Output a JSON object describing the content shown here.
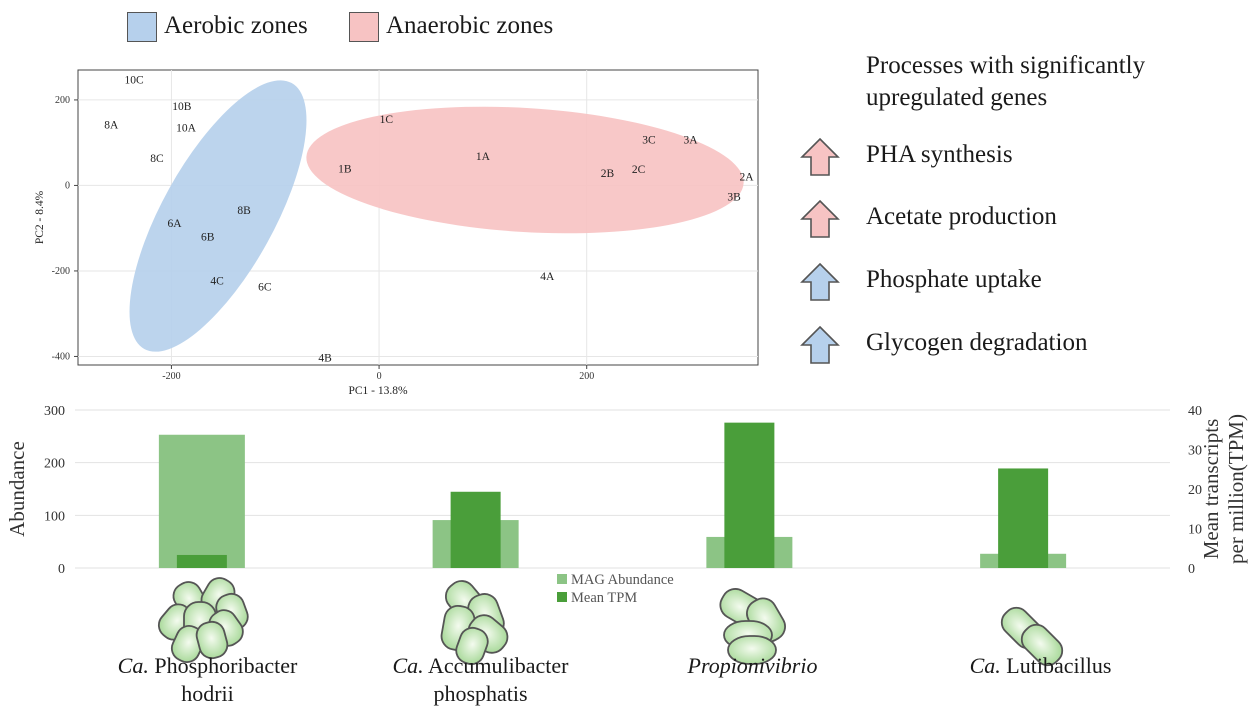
{
  "zone_legend": [
    {
      "label": "Aerobic zones",
      "color": "#b6d0ec"
    },
    {
      "label": "Anaerobic zones",
      "color": "#f7c3c3"
    }
  ],
  "processes": {
    "title": "Processes with significantly upregulated genes",
    "items": [
      {
        "label": "PHA synthesis",
        "color": "#f7c3c3"
      },
      {
        "label": "Acetate production",
        "color": "#f7c3c3"
      },
      {
        "label": "Phosphate uptake",
        "color": "#b6d0ec"
      },
      {
        "label": "Glycogen degradation",
        "color": "#b6d0ec"
      }
    ]
  },
  "organisms": [
    {
      "prefix": "Ca.",
      "name": "Phosphoribacter",
      "line2": "hodrii"
    },
    {
      "prefix": "Ca.",
      "name": "Accumulibacter",
      "line2": "phosphatis"
    },
    {
      "prefix": "",
      "name": "Propionivibrio",
      "line2": ""
    },
    {
      "prefix": "Ca.",
      "name": "Lutibacillus",
      "line2": ""
    }
  ],
  "chart_data": [
    {
      "type": "scatter",
      "xlabel": "PC1 - 13.8%",
      "ylabel": "PC2 - 8.4%",
      "xlim": [
        -290,
        365
      ],
      "ylim": [
        -420,
        270
      ],
      "xticks": [
        -200,
        0,
        200
      ],
      "yticks": [
        200,
        0,
        -200,
        -400
      ],
      "grid": true,
      "points": [
        {
          "label": "10C",
          "x": -236,
          "y": 248
        },
        {
          "label": "10B",
          "x": -190,
          "y": 186
        },
        {
          "label": "8A",
          "x": -258,
          "y": 142
        },
        {
          "label": "10A",
          "x": -186,
          "y": 135
        },
        {
          "label": "8C",
          "x": -214,
          "y": 64
        },
        {
          "label": "8B",
          "x": -130,
          "y": -57
        },
        {
          "label": "6A",
          "x": -197,
          "y": -88
        },
        {
          "label": "6B",
          "x": -165,
          "y": -120
        },
        {
          "label": "4C",
          "x": -156,
          "y": -222
        },
        {
          "label": "6C",
          "x": -110,
          "y": -236
        },
        {
          "label": "4B",
          "x": -52,
          "y": -403
        },
        {
          "label": "1C",
          "x": 7,
          "y": 155
        },
        {
          "label": "1B",
          "x": -33,
          "y": 40
        },
        {
          "label": "1A",
          "x": 100,
          "y": 69
        },
        {
          "label": "3C",
          "x": 260,
          "y": 108
        },
        {
          "label": "3A",
          "x": 300,
          "y": 108
        },
        {
          "label": "2B",
          "x": 220,
          "y": 29
        },
        {
          "label": "2C",
          "x": 250,
          "y": 39
        },
        {
          "label": "2A",
          "x": 354,
          "y": 21
        },
        {
          "label": "3B",
          "x": 342,
          "y": -26
        },
        {
          "label": "4A",
          "x": 162,
          "y": -212
        }
      ],
      "ellipses": [
        {
          "zone": "Aerobic zones",
          "color": "#b6d0ec"
        },
        {
          "zone": "Anaerobic zones",
          "color": "#f7c3c3"
        }
      ]
    },
    {
      "type": "bar",
      "categories": [
        "Ca. Phosphoribacter hodrii",
        "Ca. Accumulibacter phosphatis",
        "Propionivibrio",
        "Ca. Lutibacillus"
      ],
      "ylabel": "Abundance",
      "y2label": "Mean transcripts per million(TPM)",
      "ylim": [
        0,
        300
      ],
      "y2lim": [
        0,
        40
      ],
      "yticks": [
        0,
        100,
        200,
        300
      ],
      "y2ticks": [
        0,
        10,
        20,
        30,
        40
      ],
      "grid": true,
      "legend_position": "bottom-center",
      "series": [
        {
          "name": "MAG Abundance",
          "axis": "left",
          "color": "#8cc485",
          "values": [
            253,
            91,
            59,
            27
          ]
        },
        {
          "name": "Mean TPM",
          "axis": "right",
          "color": "#4a9e3a",
          "values": [
            3.3,
            19.3,
            36.8,
            25.2
          ]
        }
      ]
    }
  ]
}
